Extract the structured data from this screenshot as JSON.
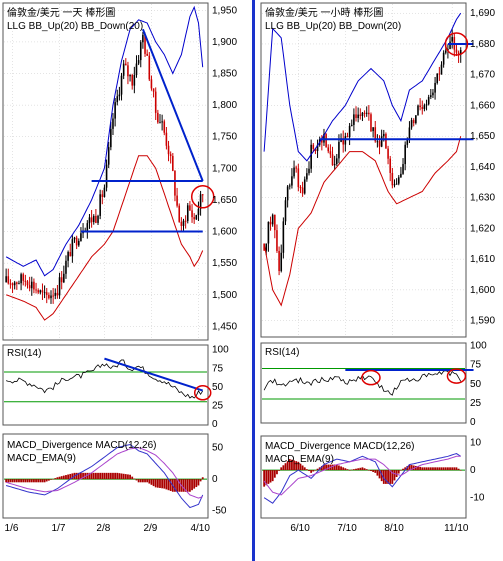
{
  "divider_color": "#1a33cc",
  "colors": {
    "price": "#000000",
    "up_candle": "#000000",
    "down_candle": "#cc0000",
    "bb_up": "#0000cc",
    "bb_down": "#cc0000",
    "rsi_line": "#000000",
    "rsi_bands": "#009900",
    "macd_line": "#3333cc",
    "ema_line": "#aa44cc",
    "hist": "#aa0000",
    "annotation": "#0022cc",
    "circle": "#dd0000",
    "grid": "#c8c8c8"
  },
  "panels": [
    {
      "id": "left",
      "title_line1": "倫敦金/美元 一天 棒形圖",
      "title_line2": "LLG  BB_Up(20)  BB_Down(20)",
      "rsi_title": "RSI(14)",
      "macd_title_line1": "MACD_Divergence  MACD(12,26)",
      "macd_title_line2": "MACD_EMA(9)",
      "price_axis": {
        "min": 1430,
        "max": 1960,
        "ticks": [
          "1,950",
          "1,900",
          "1,850",
          "1,800",
          "1,750",
          "1,700",
          "1,650",
          "1,600",
          "1,550",
          "1,500",
          "1,450"
        ],
        "tick_values": [
          1950,
          1900,
          1850,
          1800,
          1750,
          1700,
          1650,
          1600,
          1550,
          1500,
          1450
        ]
      },
      "rsi_axis": {
        "min": 0,
        "max": 105,
        "ticks": [
          "100",
          "75",
          "50",
          "25",
          "0"
        ],
        "tick_values": [
          100,
          75,
          50,
          25,
          0
        ],
        "bands": [
          70,
          30
        ]
      },
      "macd_axis": {
        "min": -60,
        "max": 70,
        "ticks": [
          "50",
          "0",
          "-50"
        ],
        "tick_values": [
          50,
          0,
          -50
        ]
      },
      "x_labels": [
        "1/6",
        "1/7",
        "2/8",
        "2/9",
        "4/10"
      ],
      "x_label_positions": [
        3,
        25,
        46,
        68,
        90
      ],
      "chart_data": {
        "type": "candlestick",
        "n_bars": 100,
        "close_keypoints": [
          [
            0,
            1520
          ],
          [
            10,
            1525
          ],
          [
            18,
            1495
          ],
          [
            24,
            1510
          ],
          [
            30,
            1570
          ],
          [
            36,
            1610
          ],
          [
            42,
            1625
          ],
          [
            46,
            1670
          ],
          [
            50,
            1780
          ],
          [
            55,
            1860
          ],
          [
            59,
            1840
          ],
          [
            62,
            1880
          ],
          [
            64,
            1910
          ],
          [
            66,
            1870
          ],
          [
            70,
            1790
          ],
          [
            73,
            1770
          ],
          [
            76,
            1730
          ],
          [
            78,
            1690
          ],
          [
            80,
            1640
          ],
          [
            82,
            1600
          ],
          [
            85,
            1640
          ],
          [
            88,
            1620
          ],
          [
            90,
            1640
          ],
          [
            92,
            1660
          ]
        ],
        "bb_up_keypoints": [
          [
            0,
            1560
          ],
          [
            8,
            1545
          ],
          [
            14,
            1555
          ],
          [
            18,
            1530
          ],
          [
            22,
            1540
          ],
          [
            28,
            1580
          ],
          [
            34,
            1610
          ],
          [
            40,
            1650
          ],
          [
            46,
            1700
          ],
          [
            50,
            1800
          ],
          [
            54,
            1870
          ],
          [
            58,
            1920
          ],
          [
            62,
            1935
          ],
          [
            66,
            1930
          ],
          [
            70,
            1900
          ],
          [
            74,
            1880
          ],
          [
            78,
            1850
          ],
          [
            82,
            1880
          ],
          [
            86,
            1940
          ],
          [
            88,
            1955
          ],
          [
            90,
            1930
          ],
          [
            92,
            1860
          ]
        ],
        "bb_down_keypoints": [
          [
            0,
            1500
          ],
          [
            8,
            1490
          ],
          [
            14,
            1480
          ],
          [
            18,
            1460
          ],
          [
            22,
            1470
          ],
          [
            28,
            1500
          ],
          [
            34,
            1530
          ],
          [
            40,
            1560
          ],
          [
            46,
            1580
          ],
          [
            50,
            1600
          ],
          [
            54,
            1640
          ],
          [
            58,
            1680
          ],
          [
            62,
            1720
          ],
          [
            66,
            1720
          ],
          [
            70,
            1700
          ],
          [
            74,
            1660
          ],
          [
            78,
            1620
          ],
          [
            82,
            1580
          ],
          [
            86,
            1560
          ],
          [
            88,
            1545
          ],
          [
            90,
            1555
          ],
          [
            92,
            1570
          ]
        ],
        "rsi_keypoints": [
          [
            0,
            60
          ],
          [
            8,
            58
          ],
          [
            14,
            52
          ],
          [
            18,
            45
          ],
          [
            22,
            50
          ],
          [
            28,
            62
          ],
          [
            34,
            64
          ],
          [
            40,
            70
          ],
          [
            46,
            82
          ],
          [
            50,
            75
          ],
          [
            54,
            85
          ],
          [
            58,
            75
          ],
          [
            62,
            78
          ],
          [
            66,
            70
          ],
          [
            70,
            62
          ],
          [
            74,
            58
          ],
          [
            78,
            50
          ],
          [
            82,
            42
          ],
          [
            85,
            38
          ],
          [
            88,
            36
          ],
          [
            90,
            42
          ],
          [
            92,
            45
          ]
        ],
        "macd_keypoints": [
          [
            0,
            -10
          ],
          [
            10,
            -20
          ],
          [
            18,
            -25
          ],
          [
            24,
            -15
          ],
          [
            32,
            5
          ],
          [
            40,
            20
          ],
          [
            46,
            35
          ],
          [
            52,
            50
          ],
          [
            58,
            55
          ],
          [
            62,
            45
          ],
          [
            66,
            40
          ],
          [
            70,
            25
          ],
          [
            74,
            10
          ],
          [
            78,
            -10
          ],
          [
            82,
            -30
          ],
          [
            86,
            -45
          ],
          [
            90,
            -40
          ],
          [
            92,
            -25
          ]
        ],
        "ema_keypoints": [
          [
            0,
            -5
          ],
          [
            10,
            -15
          ],
          [
            18,
            -20
          ],
          [
            24,
            -18
          ],
          [
            32,
            -5
          ],
          [
            40,
            10
          ],
          [
            46,
            25
          ],
          [
            52,
            40
          ],
          [
            58,
            48
          ],
          [
            62,
            50
          ],
          [
            66,
            45
          ],
          [
            70,
            38
          ],
          [
            74,
            25
          ],
          [
            78,
            10
          ],
          [
            82,
            -10
          ],
          [
            86,
            -25
          ],
          [
            90,
            -30
          ],
          [
            92,
            -28
          ]
        ],
        "annotations": {
          "hlines": [
            [
              40,
              92,
              1680
            ],
            [
              35,
              92,
              1600
            ]
          ],
          "trendline": [
            [
              64,
              1920
            ],
            [
              92,
              1680
            ]
          ],
          "circle": [
            92,
            1655
          ],
          "rsi_trendline": [
            [
              46,
              88
            ],
            [
              92,
              45
            ]
          ],
          "rsi_circle": [
            92,
            42
          ]
        }
      }
    },
    {
      "id": "right",
      "title_line1": "倫敦金/美元 一小時 棒形圖",
      "title_line2": "LLG  BB_Up(20)  BB_Down(20)",
      "rsi_title": "RSI(14)",
      "macd_title_line1": "MACD_Divergence  MACD(12,26)",
      "macd_title_line2": "MACD_EMA(9)",
      "price_axis": {
        "min": 1585,
        "max": 1693,
        "ticks": [
          "1,690",
          "1,680",
          "1,670",
          "1,660",
          "1,650",
          "1,640",
          "1,630",
          "1,620",
          "1,610",
          "1,600",
          "1,590"
        ],
        "tick_values": [
          1690,
          1680,
          1670,
          1660,
          1650,
          1640,
          1630,
          1620,
          1610,
          1600,
          1590
        ]
      },
      "rsi_axis": {
        "min": 0,
        "max": 102,
        "ticks": [
          "100",
          "75",
          "50",
          "25",
          "0"
        ],
        "tick_values": [
          100,
          75,
          50,
          25,
          0
        ],
        "bands": [
          70,
          30
        ]
      },
      "macd_axis": {
        "min": -17,
        "max": 12,
        "ticks": [
          "10",
          "0",
          "-10"
        ],
        "tick_values": [
          10,
          0,
          -10
        ]
      },
      "x_labels": [
        "6/10",
        "7/10",
        "8/10",
        "11/10"
      ],
      "x_label_positions": [
        16,
        38,
        60,
        88
      ],
      "chart_data": {
        "type": "candlestick",
        "n_bars": 100,
        "close_keypoints": [
          [
            0,
            1615
          ],
          [
            4,
            1625
          ],
          [
            7,
            1605
          ],
          [
            10,
            1630
          ],
          [
            14,
            1640
          ],
          [
            18,
            1630
          ],
          [
            22,
            1645
          ],
          [
            28,
            1650
          ],
          [
            32,
            1640
          ],
          [
            36,
            1648
          ],
          [
            40,
            1652
          ],
          [
            44,
            1658
          ],
          [
            48,
            1660
          ],
          [
            52,
            1648
          ],
          [
            56,
            1650
          ],
          [
            60,
            1632
          ],
          [
            64,
            1640
          ],
          [
            68,
            1652
          ],
          [
            72,
            1660
          ],
          [
            76,
            1662
          ],
          [
            80,
            1668
          ],
          [
            84,
            1676
          ],
          [
            88,
            1680
          ],
          [
            92,
            1677
          ]
        ],
        "bb_up_keypoints": [
          [
            0,
            1645
          ],
          [
            4,
            1685
          ],
          [
            8,
            1682
          ],
          [
            12,
            1660
          ],
          [
            16,
            1645
          ],
          [
            20,
            1642
          ],
          [
            26,
            1648
          ],
          [
            32,
            1655
          ],
          [
            38,
            1660
          ],
          [
            44,
            1668
          ],
          [
            50,
            1672
          ],
          [
            56,
            1668
          ],
          [
            60,
            1660
          ],
          [
            64,
            1655
          ],
          [
            68,
            1665
          ],
          [
            74,
            1668
          ],
          [
            80,
            1675
          ],
          [
            86,
            1682
          ],
          [
            90,
            1688
          ],
          [
            92,
            1690
          ]
        ],
        "bb_down_keypoints": [
          [
            0,
            1615
          ],
          [
            4,
            1600
          ],
          [
            8,
            1595
          ],
          [
            12,
            1605
          ],
          [
            16,
            1620
          ],
          [
            22,
            1625
          ],
          [
            28,
            1635
          ],
          [
            34,
            1640
          ],
          [
            40,
            1645
          ],
          [
            46,
            1645
          ],
          [
            52,
            1642
          ],
          [
            58,
            1632
          ],
          [
            62,
            1628
          ],
          [
            68,
            1630
          ],
          [
            74,
            1632
          ],
          [
            80,
            1638
          ],
          [
            86,
            1642
          ],
          [
            90,
            1645
          ],
          [
            92,
            1650
          ]
        ],
        "rsi_keypoints": [
          [
            0,
            45
          ],
          [
            4,
            55
          ],
          [
            8,
            48
          ],
          [
            12,
            52
          ],
          [
            16,
            55
          ],
          [
            22,
            52
          ],
          [
            28,
            55
          ],
          [
            34,
            58
          ],
          [
            40,
            52
          ],
          [
            46,
            60
          ],
          [
            52,
            55
          ],
          [
            56,
            40
          ],
          [
            60,
            38
          ],
          [
            64,
            52
          ],
          [
            68,
            55
          ],
          [
            74,
            58
          ],
          [
            80,
            62
          ],
          [
            86,
            65
          ],
          [
            90,
            60
          ],
          [
            92,
            55
          ]
        ],
        "macd_keypoints": [
          [
            0,
            -10
          ],
          [
            4,
            -12
          ],
          [
            8,
            -8
          ],
          [
            12,
            -2
          ],
          [
            16,
            0
          ],
          [
            22,
            -3
          ],
          [
            28,
            2
          ],
          [
            34,
            4
          ],
          [
            40,
            3
          ],
          [
            46,
            5
          ],
          [
            52,
            3
          ],
          [
            56,
            -3
          ],
          [
            60,
            -6
          ],
          [
            64,
            -2
          ],
          [
            68,
            2
          ],
          [
            74,
            3
          ],
          [
            80,
            4
          ],
          [
            86,
            5
          ],
          [
            90,
            6
          ],
          [
            92,
            5
          ]
        ],
        "ema_keypoints": [
          [
            0,
            -4
          ],
          [
            4,
            -8
          ],
          [
            8,
            -9
          ],
          [
            12,
            -6
          ],
          [
            16,
            -3
          ],
          [
            22,
            -2
          ],
          [
            28,
            0
          ],
          [
            34,
            2
          ],
          [
            40,
            3
          ],
          [
            46,
            4
          ],
          [
            52,
            4
          ],
          [
            56,
            2
          ],
          [
            60,
            -1
          ],
          [
            64,
            -2
          ],
          [
            68,
            0
          ],
          [
            74,
            2
          ],
          [
            80,
            3
          ],
          [
            86,
            4
          ],
          [
            90,
            5
          ],
          [
            92,
            5
          ]
        ],
        "annotations": {
          "hlines": [
            [
              86,
              98,
              1680
            ],
            [
              26,
              98,
              1649
            ]
          ],
          "circle": [
            90,
            1680
          ],
          "rsi_hline": [
            [
              38,
              98,
              68
            ]
          ],
          "rsi_circles": [
            [
              50,
              58
            ],
            [
              90,
              60
            ]
          ]
        }
      }
    }
  ]
}
